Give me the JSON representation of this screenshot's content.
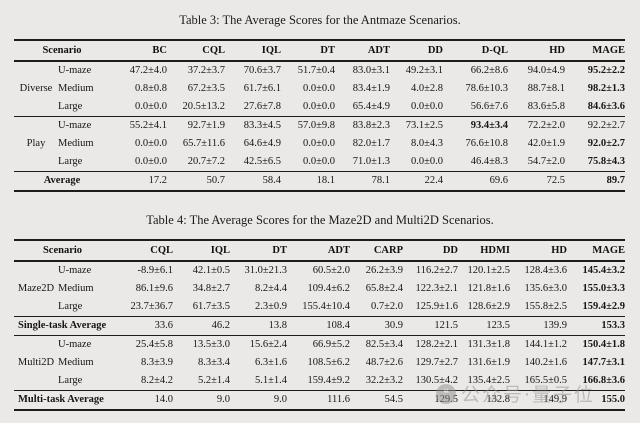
{
  "table3": {
    "title": "Table 3: The Average Scores for the Antmaze Scenarios.",
    "scenario_header": "Scenario",
    "columns": [
      "BC",
      "CQL",
      "IQL",
      "DT",
      "ADT",
      "DD",
      "D-QL",
      "HD",
      "MAGE"
    ],
    "blocks": [
      {
        "group": "Diverse",
        "rows": [
          {
            "sub": "U-maze",
            "values": [
              "47.2±4.0",
              "37.2±3.7",
              "70.6±3.7",
              "51.7±0.4",
              "83.0±3.1",
              "49.2±3.1",
              "66.2±8.6",
              "94.0±4.9",
              "95.2±2.2"
            ],
            "bold": [
              8
            ]
          },
          {
            "sub": "Medium",
            "values": [
              "0.8±0.8",
              "67.2±3.5",
              "61.7±6.1",
              "0.0±0.0",
              "83.4±1.9",
              "4.0±2.8",
              "78.6±10.3",
              "88.7±8.1",
              "98.2±1.3"
            ],
            "bold": [
              8
            ]
          },
          {
            "sub": "Large",
            "values": [
              "0.0±0.0",
              "20.5±13.2",
              "27.6±7.8",
              "0.0±0.0",
              "65.4±4.9",
              "0.0±0.0",
              "56.6±7.6",
              "83.6±5.8",
              "84.6±3.6"
            ],
            "bold": [
              8
            ]
          }
        ]
      },
      {
        "group": "Play",
        "rows": [
          {
            "sub": "U-maze",
            "values": [
              "55.2±4.1",
              "92.7±1.9",
              "83.3±4.5",
              "57.0±9.8",
              "83.8±2.3",
              "73.1±2.5",
              "93.4±3.4",
              "72.2±2.0",
              "92.2±2.7"
            ],
            "bold": [
              6
            ]
          },
          {
            "sub": "Medium",
            "values": [
              "0.0±0.0",
              "65.7±11.6",
              "64.6±4.9",
              "0.0±0.0",
              "82.0±1.7",
              "8.0±4.3",
              "76.6±10.8",
              "42.0±1.9",
              "92.0±2.7"
            ],
            "bold": [
              8
            ]
          },
          {
            "sub": "Large",
            "values": [
              "0.0±0.0",
              "20.7±7.2",
              "42.5±6.5",
              "0.0±0.0",
              "71.0±1.3",
              "0.0±0.0",
              "46.4±8.3",
              "54.7±2.0",
              "75.8±4.3"
            ],
            "bold": [
              8
            ]
          }
        ]
      },
      {
        "average_label": "Average",
        "values": [
          "17.2",
          "50.7",
          "58.4",
          "18.1",
          "78.1",
          "22.4",
          "69.6",
          "72.5",
          "89.7"
        ],
        "bold": [
          8
        ]
      }
    ]
  },
  "table4": {
    "title": "Table 4: The Average Scores for the Maze2D and Multi2D Scenarios.",
    "scenario_header": "Scenario",
    "columns": [
      "CQL",
      "IQL",
      "DT",
      "ADT",
      "CARP",
      "DD",
      "HDMI",
      "HD",
      "MAGE"
    ],
    "blocks": [
      {
        "group": "Maze2D",
        "rows": [
          {
            "sub": "U-maze",
            "values": [
              "-8.9±6.1",
              "42.1±0.5",
              "31.0±21.3",
              "60.5±2.0",
              "26.2±3.9",
              "116.2±2.7",
              "120.1±2.5",
              "128.4±3.6",
              "145.4±3.2"
            ],
            "bold": [
              8
            ]
          },
          {
            "sub": "Medium",
            "values": [
              "86.1±9.6",
              "34.8±2.7",
              "8.2±4.4",
              "109.4±6.2",
              "65.8±2.4",
              "122.3±2.1",
              "121.8±1.6",
              "135.6±3.0",
              "155.0±3.3"
            ],
            "bold": [
              8
            ]
          },
          {
            "sub": "Large",
            "values": [
              "23.7±36.7",
              "61.7±3.5",
              "2.3±0.9",
              "155.4±10.4",
              "0.7±2.0",
              "125.9±1.6",
              "128.6±2.9",
              "155.8±2.5",
              "159.4±2.9"
            ],
            "bold": [
              8
            ]
          }
        ]
      },
      {
        "average_label": "Single-task Average",
        "values": [
          "33.6",
          "46.2",
          "13.8",
          "108.4",
          "30.9",
          "121.5",
          "123.5",
          "139.9",
          "153.3"
        ],
        "bold": [
          8
        ]
      },
      {
        "group": "Multi2D",
        "rows": [
          {
            "sub": "U-maze",
            "values": [
              "25.4±5.8",
              "13.5±3.0",
              "15.6±2.4",
              "66.9±5.2",
              "82.5±3.4",
              "128.2±2.1",
              "131.3±1.8",
              "144.1±1.2",
              "150.4±1.8"
            ],
            "bold": [
              8
            ]
          },
          {
            "sub": "Medium",
            "values": [
              "8.3±3.9",
              "8.3±3.4",
              "6.3±1.6",
              "108.5±6.2",
              "48.7±2.6",
              "129.7±2.7",
              "131.6±1.9",
              "140.2±1.6",
              "147.7±3.1"
            ],
            "bold": [
              8
            ]
          },
          {
            "sub": "Large",
            "values": [
              "8.2±4.2",
              "5.2±1.4",
              "5.1±1.4",
              "159.4±9.2",
              "32.2±3.2",
              "130.5±4.2",
              "135.4±2.5",
              "165.5±0.5",
              "166.8±3.6"
            ],
            "bold": [
              8
            ]
          }
        ]
      },
      {
        "average_label": "Multi-task Average",
        "values": [
          "14.0",
          "9.0",
          "9.0",
          "111.6",
          "54.5",
          "129.5",
          "132.8",
          "149.9",
          "155.0"
        ],
        "bold": [
          8
        ]
      }
    ]
  },
  "watermark": {
    "text": "公众号·量子位",
    "icon_glyph": "❝",
    "color": "#8f8f8f"
  }
}
